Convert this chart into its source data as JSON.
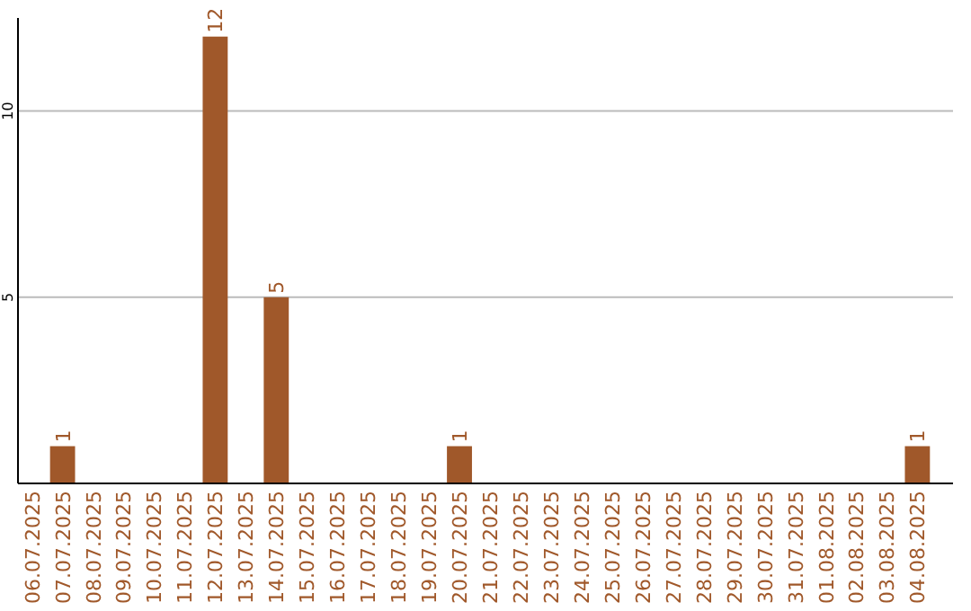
{
  "chart_data": {
    "type": "bar",
    "categories": [
      "06.07.2025",
      "07.07.2025",
      "08.07.2025",
      "09.07.2025",
      "10.07.2025",
      "11.07.2025",
      "12.07.2025",
      "13.07.2025",
      "14.07.2025",
      "15.07.2025",
      "16.07.2025",
      "17.07.2025",
      "18.07.2025",
      "19.07.2025",
      "20.07.2025",
      "21.07.2025",
      "22.07.2025",
      "23.07.2025",
      "24.07.2025",
      "25.07.2025",
      "26.07.2025",
      "27.07.2025",
      "28.07.2025",
      "29.07.2025",
      "30.07.2025",
      "31.07.2025",
      "01.08.2025",
      "02.08.2025",
      "03.08.2025",
      "04.08.2025"
    ],
    "values": [
      0,
      1,
      0,
      0,
      0,
      0,
      12,
      0,
      5,
      0,
      0,
      0,
      0,
      0,
      1,
      0,
      0,
      0,
      0,
      0,
      0,
      0,
      0,
      0,
      0,
      0,
      0,
      0,
      0,
      1
    ],
    "value_labels": [
      null,
      "1",
      null,
      null,
      null,
      null,
      "12",
      null,
      "5",
      null,
      null,
      null,
      null,
      null,
      "1",
      null,
      null,
      null,
      null,
      null,
      null,
      null,
      null,
      null,
      null,
      null,
      null,
      null,
      null,
      "1"
    ],
    "color": "#a0582a",
    "ylim": [
      0,
      12.5
    ],
    "yticks": [
      5,
      10
    ],
    "grid": "y"
  }
}
